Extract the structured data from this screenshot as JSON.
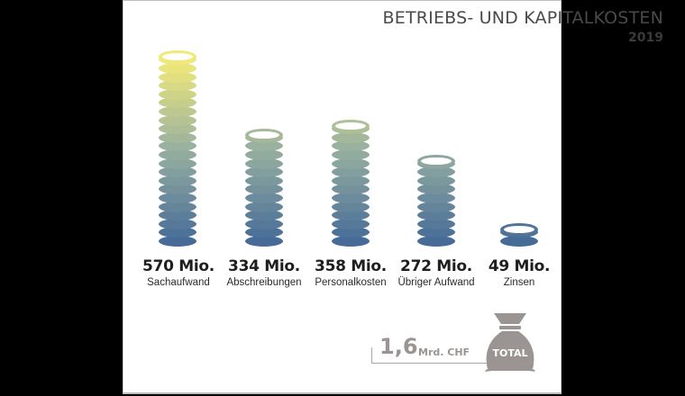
{
  "header": {
    "title": "BETRIEBS- UND KAPITALKOSTEN",
    "year": "2019"
  },
  "colors": {
    "top_yellow": "#efe87a",
    "bottom_blue": "#3d6397",
    "total_gray": "#9a9592",
    "background": "#ffffff",
    "frame": "#000000"
  },
  "items": [
    {
      "value": "570 Mio.",
      "label": "Sachaufwand"
    },
    {
      "value": "334 Mio.",
      "label": "Abschreibungen"
    },
    {
      "value": "358 Mio.",
      "label": "Personalkosten"
    },
    {
      "value": "272 Mio.",
      "label": "Übriger Aufwand"
    },
    {
      "value": "49 Mio.",
      "label": "Zinsen"
    }
  ],
  "total": {
    "value": "1,6",
    "unit": "Mrd. CHF",
    "badge": "TOTAL",
    "icon": "money-bag-icon"
  },
  "chart_data": {
    "type": "bar",
    "title": "BETRIEBS- UND KAPITALKOSTEN",
    "subtitle": "2019",
    "categories": [
      "Sachaufwand",
      "Abschreibungen",
      "Personalkosten",
      "Übriger Aufwand",
      "Zinsen"
    ],
    "values": [
      570,
      334,
      358,
      272,
      49
    ],
    "value_labels": [
      "570 Mio.",
      "334 Mio.",
      "358 Mio.",
      "272 Mio.",
      "49 Mio."
    ],
    "unit": "Mio. CHF",
    "total": 1.6,
    "total_label": "1,6 Mrd. CHF",
    "xlabel": "",
    "ylabel": "",
    "grid": false,
    "legend": "none",
    "style": "stacked coins, gradient yellow (top) to blue (bottom)"
  }
}
